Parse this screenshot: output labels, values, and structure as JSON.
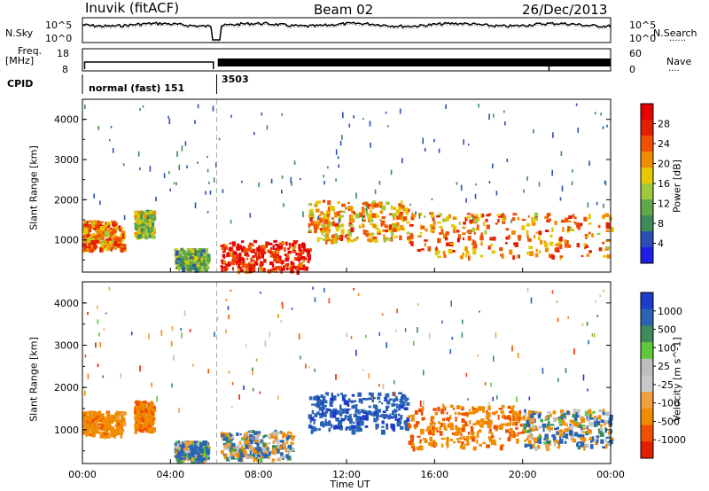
{
  "header": {
    "station": "Inuvik (fitACF)",
    "beam": "Beam 02",
    "date": "26/Dec/2013"
  },
  "side_labels": {
    "nsky": "N.Sky",
    "nsearch": "N.Search",
    "freq": "Freq.",
    "freq_unit": "[MHz]",
    "nave": "Nave",
    "cpid": "CPID",
    "dots": "......",
    "dots_short": "...."
  },
  "noise_ticks": {
    "left_top": "10^5",
    "left_bottom": "10^0",
    "right_top": "10^5",
    "right_bottom": "10^0"
  },
  "freq_ticks": {
    "left_top": "18",
    "left_bottom": "8",
    "right_top": "60",
    "right_bottom": "0"
  },
  "cpid": {
    "first": "normal (fast) 151",
    "second": "3503"
  },
  "colors": {
    "power_scale": [
      "#1e1ee6",
      "#2a4fb4",
      "#3d8c5a",
      "#5fa84a",
      "#a0c83c",
      "#e6c800",
      "#f08c00",
      "#f05000",
      "#e61e00",
      "#e60000"
    ],
    "velocity_scale": [
      "#e61e00",
      "#f05000",
      "#f08c00",
      "#f0a040",
      "#c8c8c8",
      "#bebebe",
      "#5fc83c",
      "#3d8c5a",
      "#2a64b4",
      "#1e3cc8"
    ]
  },
  "chart_data": [
    {
      "type": "heatmap",
      "panel": "power",
      "title": "",
      "xlabel": "",
      "ylabel": "Slant Range [km]",
      "xlim": [
        "00:00",
        "24:00"
      ],
      "ylim": [
        200,
        4500
      ],
      "yticks": [
        "1000",
        "2000",
        "3000",
        "4000"
      ],
      "colorbar": {
        "label": "Power [dB]",
        "ticks": [
          "4",
          "8",
          "12",
          "16",
          "20",
          "24",
          "28"
        ],
        "range": [
          0,
          32
        ]
      },
      "regions": [
        {
          "time": [
            "00:00",
            "01:50"
          ],
          "range_km": [
            800,
            1500
          ],
          "power_db": 22
        },
        {
          "time": [
            "02:20",
            "03:10"
          ],
          "range_km": [
            1100,
            1750
          ],
          "power_db": 14
        },
        {
          "time": [
            "04:10",
            "05:40"
          ],
          "range_km": [
            300,
            800
          ],
          "power_db": 12
        },
        {
          "time": [
            "06:15",
            "10:15"
          ],
          "range_km": [
            250,
            1000
          ],
          "power_db": 28
        },
        {
          "time": [
            "10:15",
            "14:45"
          ],
          "range_km": [
            1000,
            2000
          ],
          "power_db": 20
        },
        {
          "time": [
            "14:45",
            "24:00"
          ],
          "range_km": [
            600,
            1700
          ],
          "power_db": 22
        }
      ]
    },
    {
      "type": "heatmap",
      "panel": "velocity",
      "title": "",
      "xlabel": "Time UT",
      "ylabel": "Slant Range [km]",
      "xlim": [
        "00:00",
        "24:00"
      ],
      "ylim": [
        200,
        4500
      ],
      "xticks": [
        "00:00",
        "04:00",
        "08:00",
        "12:00",
        "16:00",
        "20:00",
        "00:00"
      ],
      "yticks": [
        "1000",
        "2000",
        "3000",
        "4000"
      ],
      "colorbar": {
        "label": "Velocity [m s^-1]",
        "ticks": [
          "1000",
          "500",
          "100",
          "25",
          "-25",
          "-100",
          "-500",
          "-1000"
        ]
      },
      "regions": [
        {
          "time": [
            "00:00",
            "01:50"
          ],
          "range_km": [
            900,
            1450
          ],
          "velocity_ms": -300
        },
        {
          "time": [
            "02:20",
            "03:10"
          ],
          "range_km": [
            1000,
            1700
          ],
          "velocity_ms": -400
        },
        {
          "time": [
            "04:10",
            "05:40"
          ],
          "range_km": [
            300,
            750
          ],
          "velocity_ms": 100
        },
        {
          "time": [
            "06:15",
            "09:30"
          ],
          "range_km": [
            300,
            1000
          ],
          "velocity_ms": 0
        },
        {
          "time": [
            "10:15",
            "14:45"
          ],
          "range_km": [
            1000,
            1900
          ],
          "velocity_ms": 400
        },
        {
          "time": [
            "14:45",
            "20:00"
          ],
          "range_km": [
            600,
            1600
          ],
          "velocity_ms": -400
        },
        {
          "time": [
            "20:00",
            "24:00"
          ],
          "range_km": [
            600,
            1500
          ],
          "velocity_ms": 0
        }
      ]
    }
  ]
}
